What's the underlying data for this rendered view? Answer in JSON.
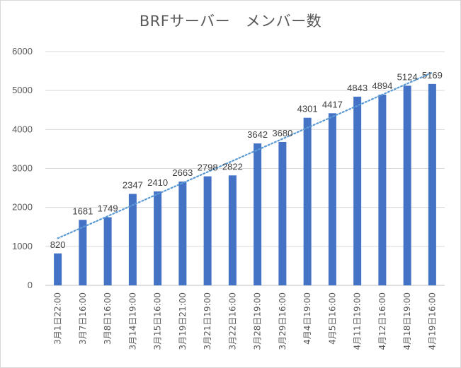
{
  "chart_data": {
    "type": "bar",
    "title": "BRFサーバー　メンバー数",
    "xlabel": "",
    "ylabel": "",
    "ylim": [
      0,
      6000
    ],
    "yticks": [
      0,
      1000,
      2000,
      3000,
      4000,
      5000,
      6000
    ],
    "grid": true,
    "legend": "none",
    "trendline": "linear, dotted",
    "colors": {
      "bar": "#4472c4",
      "trend": "#5b9bd5",
      "grid": "#d9d9d9"
    },
    "categories": [
      "3月1日22:00",
      "3月7日16:00",
      "3月8日16:00",
      "3月14日19:00",
      "3月15日16:00",
      "3月19日21:00",
      "3月21日19:00",
      "3月22日16:00",
      "3月28日19:00",
      "3月29日16:00",
      "4月4日19:00",
      "4月5日16:00",
      "4月11日19:00",
      "4月12日16:00",
      "4月18日19:00",
      "4月19日16:00"
    ],
    "values": [
      820,
      1681,
      1749,
      2347,
      2410,
      2663,
      2798,
      2822,
      3642,
      3680,
      4301,
      4417,
      4843,
      4894,
      5124,
      5169
    ]
  }
}
